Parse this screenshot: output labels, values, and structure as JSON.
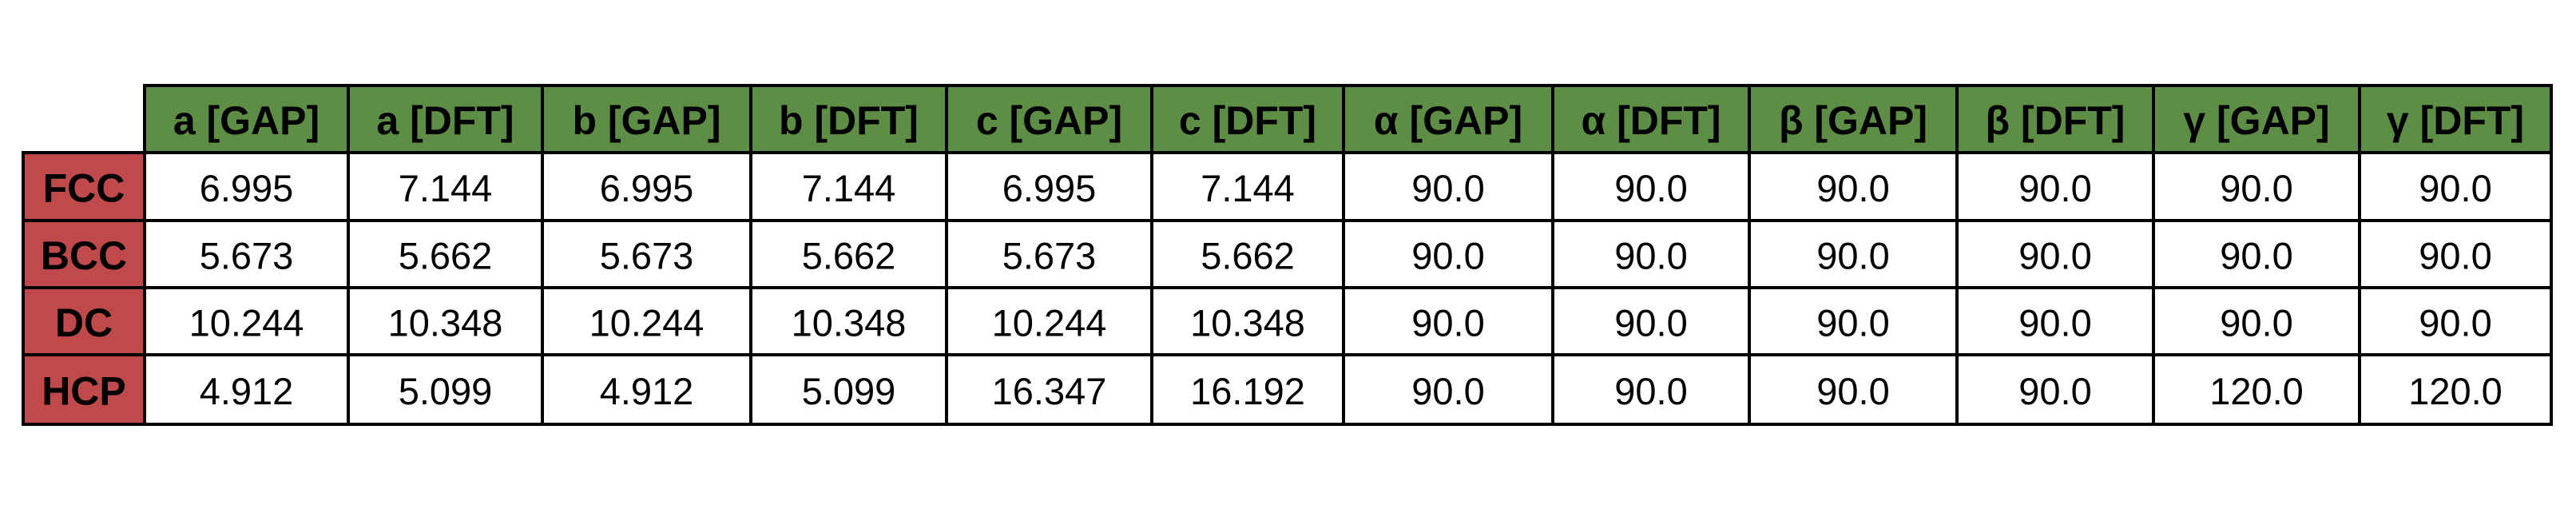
{
  "table": {
    "columns": [
      "a [GAP]",
      "a [DFT]",
      "b [GAP]",
      "b [DFT]",
      "c [GAP]",
      "c [DFT]",
      "α [GAP]",
      "α [DFT]",
      "β [GAP]",
      "β [DFT]",
      "γ [GAP]",
      "γ [DFT]"
    ],
    "rows": [
      {
        "label": "FCC",
        "cells": [
          "6.995",
          "7.144",
          "6.995",
          "7.144",
          "6.995",
          "7.144",
          "90.0",
          "90.0",
          "90.0",
          "90.0",
          "90.0",
          "90.0"
        ]
      },
      {
        "label": "BCC",
        "cells": [
          "5.673",
          "5.662",
          "5.673",
          "5.662",
          "5.673",
          "5.662",
          "90.0",
          "90.0",
          "90.0",
          "90.0",
          "90.0",
          "90.0"
        ]
      },
      {
        "label": "DC",
        "cells": [
          "10.244",
          "10.348",
          "10.244",
          "10.348",
          "10.244",
          "10.348",
          "90.0",
          "90.0",
          "90.0",
          "90.0",
          "90.0",
          "90.0"
        ]
      },
      {
        "label": "HCP",
        "cells": [
          "4.912",
          "5.099",
          "4.912",
          "5.099",
          "16.347",
          "16.192",
          "90.0",
          "90.0",
          "90.0",
          "90.0",
          "120.0",
          "120.0"
        ]
      }
    ]
  }
}
